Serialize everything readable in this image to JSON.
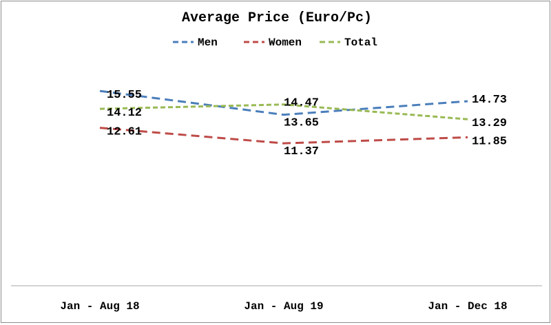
{
  "chart_data": {
    "type": "line",
    "title": "Average Price (Euro/Pc)",
    "categories": [
      "Jan - Aug 18",
      "Jan - Aug 19",
      "Jan - Dec 18"
    ],
    "series": [
      {
        "name": "Men",
        "values": [
          15.55,
          13.65,
          14.73
        ],
        "color": "#4a7ebb",
        "labels": [
          "15.55",
          "13.65",
          "14.73"
        ]
      },
      {
        "name": "Women",
        "values": [
          12.61,
          11.37,
          11.85
        ],
        "color": "#be4b48",
        "labels": [
          "12.61",
          "11.37",
          "11.85"
        ]
      },
      {
        "name": "Total",
        "values": [
          14.12,
          14.47,
          13.29
        ],
        "color": "#98b954",
        "labels": [
          "14.12",
          "14.47",
          "13.29"
        ]
      }
    ],
    "line_style": "dashed",
    "legend_position": "top",
    "ylim": [
      0,
      22.7
    ],
    "grid": false,
    "y_axis_visible": false
  }
}
